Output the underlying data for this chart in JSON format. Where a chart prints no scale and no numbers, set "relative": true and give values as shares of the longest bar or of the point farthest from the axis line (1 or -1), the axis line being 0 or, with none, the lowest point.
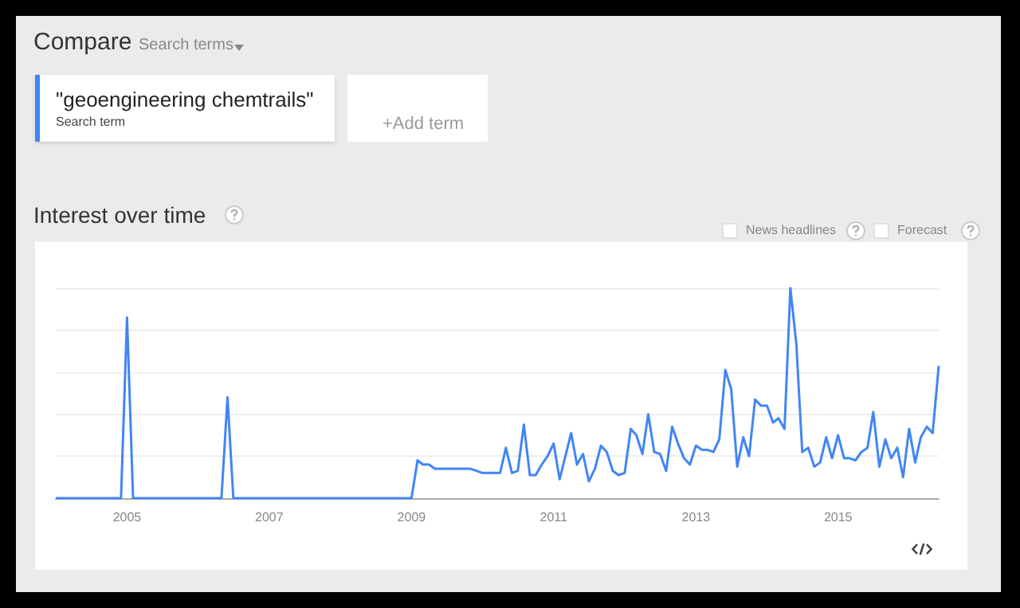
{
  "chart_data": {
    "type": "line",
    "title": "Interest over time",
    "relative": true,
    "grid": "y",
    "legend": "top left",
    "marker": "none",
    "line_style": "solid",
    "annotations": [
      "Compare",
      "Search terms",
      "Search term",
      "+Add term",
      "News headlines",
      "Forecast"
    ],
    "xlim": [
      "2004-01",
      "2016-06"
    ],
    "xticks": [
      "2005",
      "2007",
      "2009",
      "2011",
      "2013",
      "2015"
    ],
    "series": [
      {
        "name": "\"geoengineering chemtrails\"",
        "color": "#4285f4",
        "x": [
          "2004-01",
          "2004-12",
          "2005-01",
          "2005-02",
          "2006-05",
          "2006-06",
          "2006-07",
          "2009-01",
          "2009-02",
          "2009-03",
          "2009-04",
          "2009-05",
          "2009-11",
          "2009-12",
          "2010-01",
          "2010-04",
          "2010-05",
          "2010-06",
          "2010-07",
          "2010-08",
          "2010-09",
          "2010-10",
          "2010-11",
          "2010-12",
          "2011-01",
          "2011-02",
          "2011-04",
          "2011-05",
          "2011-06",
          "2011-07",
          "2011-08",
          "2011-09",
          "2011-10",
          "2011-11",
          "2011-12",
          "2012-01",
          "2012-02",
          "2012-03",
          "2012-04",
          "2012-05",
          "2012-06",
          "2012-07",
          "2012-08",
          "2012-09",
          "2012-10",
          "2012-11",
          "2012-12",
          "2013-01",
          "2013-02",
          "2013-03",
          "2013-04",
          "2013-05",
          "2013-06",
          "2013-07",
          "2013-08",
          "2013-09",
          "2013-10",
          "2013-11",
          "2013-12",
          "2014-01",
          "2014-02",
          "2014-03",
          "2014-04",
          "2014-05",
          "2014-06",
          "2014-07",
          "2014-08",
          "2014-09",
          "2014-10",
          "2014-11",
          "2014-12",
          "2015-01",
          "2015-02",
          "2015-03",
          "2015-04",
          "2015-05",
          "2015-06",
          "2015-07",
          "2015-08",
          "2015-09",
          "2015-10",
          "2015-11",
          "2015-12",
          "2016-01",
          "2016-02",
          "2016-03",
          "2016-04",
          "2016-05",
          "2016-06"
        ],
        "values": [
          0,
          0,
          0.86,
          0,
          0,
          0.48,
          0,
          0,
          0.18,
          0.16,
          0.16,
          0.14,
          0.14,
          0.13,
          0.12,
          0.12,
          0.24,
          0.12,
          0.13,
          0.35,
          0.11,
          0.11,
          0.16,
          0.2,
          0.26,
          0.09,
          0.31,
          0.16,
          0.21,
          0.08,
          0.14,
          0.25,
          0.22,
          0.13,
          0.11,
          0.12,
          0.33,
          0.3,
          0.21,
          0.4,
          0.22,
          0.21,
          0.13,
          0.34,
          0.26,
          0.19,
          0.16,
          0.25,
          0.23,
          0.23,
          0.22,
          0.28,
          0.61,
          0.52,
          0.15,
          0.29,
          0.2,
          0.47,
          0.44,
          0.44,
          0.36,
          0.38,
          0.33,
          1,
          0.73,
          0.22,
          0.24,
          0.15,
          0.17,
          0.29,
          0.19,
          0.3,
          0.19,
          0.19,
          0.18,
          0.22,
          0.24,
          0.41,
          0.15,
          0.28,
          0.19,
          0.24,
          0.1,
          0.33,
          0.17,
          0.29,
          0.34,
          0.31,
          0.63
        ]
      }
    ]
  }
}
